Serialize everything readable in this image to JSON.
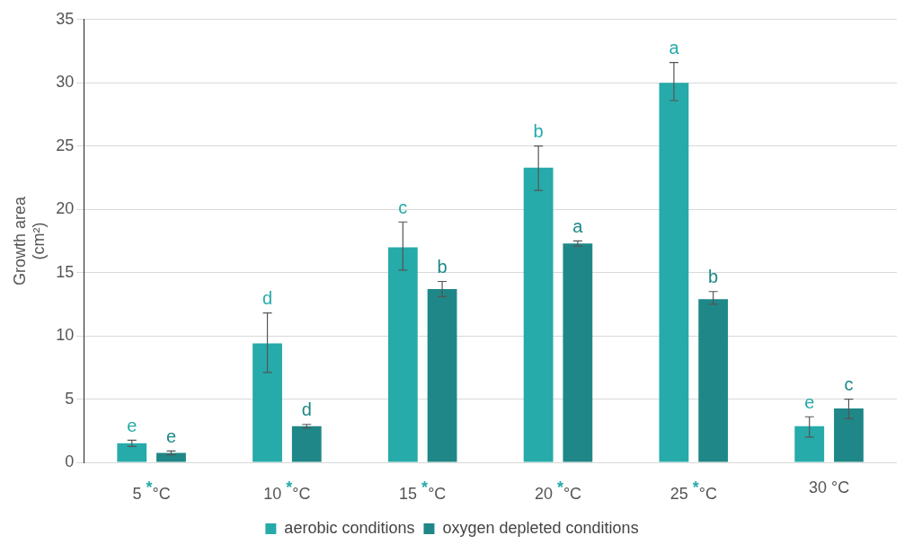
{
  "chart_data": {
    "type": "bar",
    "ylabel": "Growth area (cm²)",
    "categories": [
      "5 $^{*}$°C",
      "10 $^{*}$°C",
      "15 $^{*}$°C",
      "20 $^{*}$°C",
      "25 $^{*}$°C",
      "30 °C"
    ],
    "series": [
      {
        "name": "aerobic conditions",
        "color": "#27aaaa",
        "values": [
          1.5,
          9.4,
          17.0,
          23.3,
          30.0,
          2.85
        ],
        "errors": [
          [
            1.25,
            1.75
          ],
          [
            7.1,
            11.8
          ],
          [
            15.2,
            19.0
          ],
          [
            21.5,
            25.0
          ],
          [
            28.6,
            31.6
          ],
          [
            2.0,
            3.6
          ]
        ],
        "value_labels": [
          "e",
          "d",
          "c",
          "b",
          "a",
          "e"
        ]
      },
      {
        "name": "oxygen depleted conditions",
        "color": "#1f8787",
        "values": [
          0.75,
          2.85,
          13.7,
          17.3,
          12.9,
          4.25
        ],
        "errors": [
          [
            0.6,
            0.9
          ],
          [
            2.7,
            3.0
          ],
          [
            13.1,
            14.3
          ],
          [
            17.1,
            17.5
          ],
          [
            12.5,
            13.5
          ],
          [
            3.45,
            5.0
          ]
        ],
        "value_labels": [
          "e",
          "d",
          "b",
          "a",
          "b",
          "c"
        ]
      }
    ],
    "ylim": [
      0,
      35
    ],
    "yticks": [
      0,
      5,
      10,
      15,
      20,
      25,
      30,
      35
    ],
    "grid": "y",
    "legend": "bottom"
  }
}
